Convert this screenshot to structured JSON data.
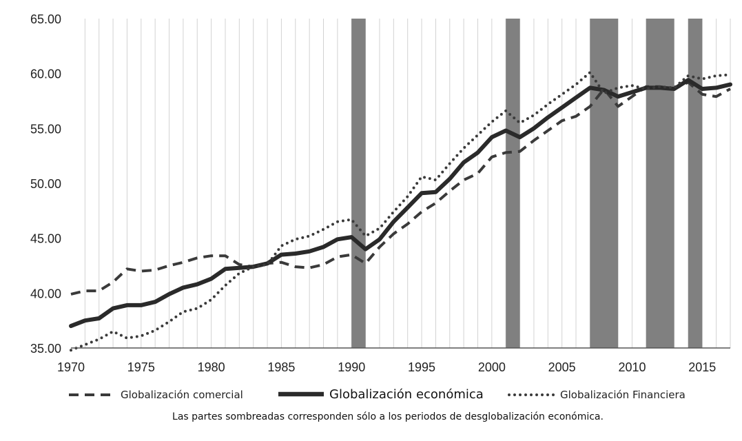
{
  "chart_data": {
    "type": "line",
    "title": "",
    "xlabel": "",
    "ylabel": "",
    "xlim": [
      1970,
      2017
    ],
    "ylim": [
      35,
      65
    ],
    "x_ticks": [
      "1970",
      "1975",
      "1980",
      "1985",
      "1990",
      "1995",
      "2000",
      "2005",
      "2010",
      "2015"
    ],
    "y_ticks": [
      "35.00",
      "40.00",
      "45.00",
      "50.00",
      "55.00",
      "60.00",
      "65.00"
    ],
    "grid": "vertical",
    "x": [
      1970,
      1971,
      1972,
      1973,
      1974,
      1975,
      1976,
      1977,
      1978,
      1979,
      1980,
      1981,
      1982,
      1983,
      1984,
      1985,
      1986,
      1987,
      1988,
      1989,
      1990,
      1991,
      1992,
      1993,
      1994,
      1995,
      1996,
      1997,
      1998,
      1999,
      2000,
      2001,
      2002,
      2003,
      2004,
      2005,
      2006,
      2007,
      2008,
      2009,
      2010,
      2011,
      2012,
      2013,
      2014,
      2015,
      2016,
      2017
    ],
    "series": [
      {
        "name": "Globalización comercial",
        "style": "dashed",
        "values": [
          39.9,
          40.2,
          40.2,
          41.0,
          42.2,
          42.0,
          42.1,
          42.5,
          42.8,
          43.2,
          43.4,
          43.4,
          42.6,
          42.4,
          42.7,
          42.8,
          42.4,
          42.3,
          42.6,
          43.3,
          43.5,
          42.7,
          44.2,
          45.4,
          46.3,
          47.4,
          48.2,
          49.3,
          50.3,
          50.9,
          52.4,
          52.8,
          52.9,
          53.9,
          54.8,
          55.7,
          56.1,
          57.0,
          58.6,
          57.0,
          57.9,
          58.8,
          58.8,
          58.6,
          59.2,
          58.1,
          57.9,
          58.6
        ]
      },
      {
        "name": "Globalización económica",
        "style": "solid",
        "values": [
          37.0,
          37.5,
          37.7,
          38.6,
          38.9,
          38.9,
          39.2,
          39.9,
          40.5,
          40.8,
          41.3,
          42.2,
          42.3,
          42.4,
          42.7,
          43.5,
          43.6,
          43.8,
          44.2,
          44.9,
          45.1,
          44.0,
          44.9,
          46.5,
          47.8,
          49.1,
          49.2,
          50.4,
          51.9,
          52.8,
          54.2,
          54.8,
          54.2,
          55.0,
          56.0,
          56.9,
          57.8,
          58.7,
          58.5,
          57.9,
          58.3,
          58.7,
          58.7,
          58.6,
          59.4,
          58.6,
          58.7,
          59.0
        ]
      },
      {
        "name": "Globalización Financiera",
        "style": "dotted",
        "values": [
          34.8,
          35.3,
          35.8,
          36.5,
          35.9,
          36.1,
          36.6,
          37.4,
          38.3,
          38.6,
          39.4,
          40.7,
          41.8,
          42.4,
          42.6,
          44.3,
          44.9,
          45.2,
          45.8,
          46.5,
          46.7,
          45.2,
          45.9,
          47.4,
          48.8,
          50.6,
          50.3,
          51.8,
          53.2,
          54.4,
          55.6,
          56.6,
          55.5,
          56.2,
          57.2,
          58.1,
          59.0,
          60.1,
          58.2,
          58.7,
          58.9,
          58.6,
          58.8,
          58.7,
          59.8,
          59.5,
          59.8,
          59.9
        ]
      }
    ],
    "shaded_periods": [
      [
        1990,
        1991
      ],
      [
        2001,
        2002
      ],
      [
        2007,
        2009
      ],
      [
        2011,
        2013
      ],
      [
        2014,
        2015
      ]
    ],
    "legend": {
      "position": "bottom",
      "entries": [
        "Globalización comercial",
        "Globalización económica",
        "Globalización Financiera"
      ]
    },
    "note": "Las partes sombreadas corresponden sólo a los periodos de desglobalización económica."
  },
  "colors": {
    "line": "#3a3a3a",
    "shade": "#808080",
    "grid": "#d2d2d2",
    "axis": "#555555"
  }
}
